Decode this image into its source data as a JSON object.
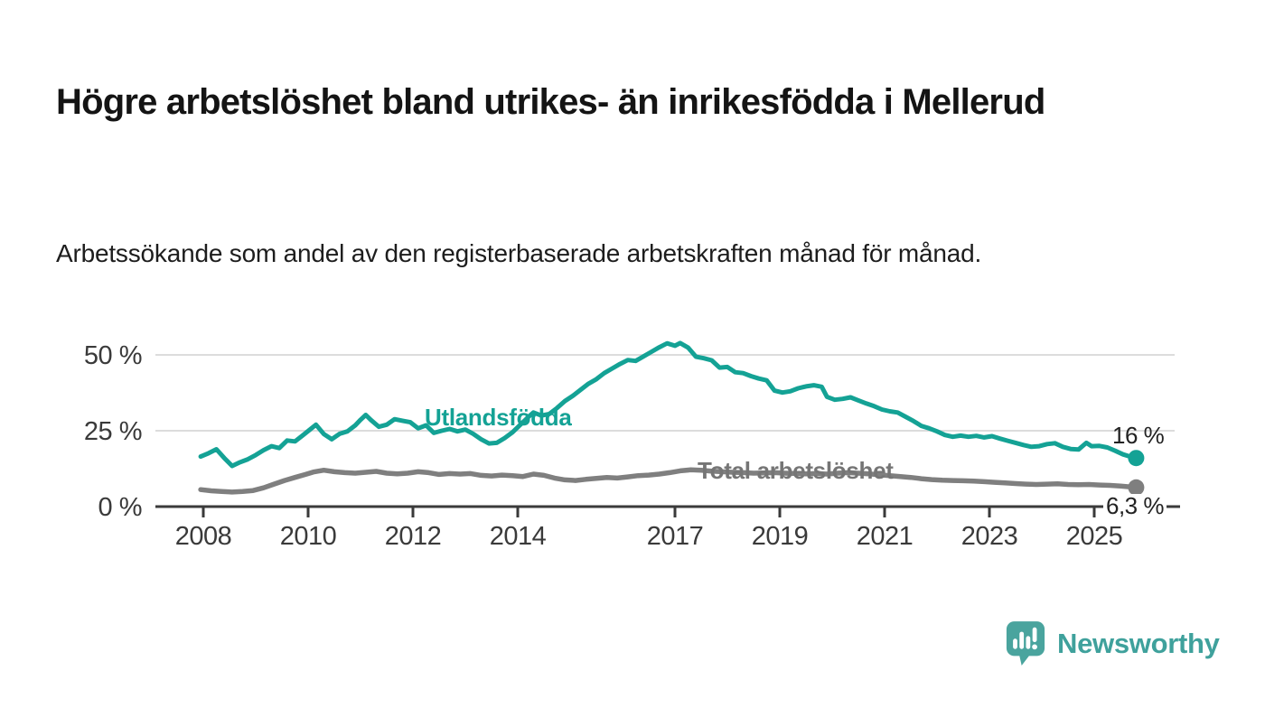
{
  "header": {
    "title": "Högre arbetslöshet bland utrikes- än inrikesfödda i Mellerud",
    "subtitle": "Arbetssökande som andel av den registerbaserade arbetskraften månad för månad."
  },
  "colors": {
    "accent_teal": "#14a295",
    "line_gray": "#7f7f7f",
    "series_label_gray": "#757575",
    "axis": "#3a3a3a",
    "gridline": "#dcdcdc",
    "end_label_text": "#222222",
    "logo_teal": "#4aa49e"
  },
  "chart_data": {
    "type": "line",
    "title": "Högre arbetslöshet bland utrikes- än inrikesfödda i Mellerud",
    "subtitle": "Arbetssökande som andel av den registerbaserade arbetskraften månad för månad.",
    "xlabel": "",
    "ylabel": "",
    "x_range": [
      2007.95,
      2025.8
    ],
    "ylim": [
      0,
      56
    ],
    "grid": "horizontal",
    "legend_position": "inline-labels",
    "y_axis": {
      "ticks": [
        {
          "value": 0,
          "label": "0 %"
        },
        {
          "value": 25,
          "label": "25 %"
        },
        {
          "value": 50,
          "label": "50 %"
        }
      ]
    },
    "x_axis": {
      "ticks": [
        {
          "year": 2008,
          "label": "2008"
        },
        {
          "year": 2010,
          "label": "2010"
        },
        {
          "year": 2012,
          "label": "2012"
        },
        {
          "year": 2014,
          "label": "2014"
        },
        {
          "year": 2017,
          "label": "2017"
        },
        {
          "year": 2019,
          "label": "2019"
        },
        {
          "year": 2021,
          "label": "2021"
        },
        {
          "year": 2023,
          "label": "2023"
        },
        {
          "year": 2025,
          "label": "2025"
        }
      ]
    },
    "series": [
      {
        "name": "Utlandsfödda",
        "label": "Utlandsfödda",
        "end_label": "16 %",
        "end_value": 16,
        "color": "#14a295",
        "points": [
          [
            2007.95,
            16.5
          ],
          [
            2008.1,
            17.6
          ],
          [
            2008.25,
            18.9
          ],
          [
            2008.4,
            16.0
          ],
          [
            2008.55,
            13.4
          ],
          [
            2008.7,
            14.6
          ],
          [
            2008.85,
            15.6
          ],
          [
            2009.0,
            17.0
          ],
          [
            2009.15,
            18.6
          ],
          [
            2009.3,
            19.9
          ],
          [
            2009.45,
            19.3
          ],
          [
            2009.6,
            21.8
          ],
          [
            2009.75,
            21.5
          ],
          [
            2009.9,
            23.5
          ],
          [
            2010.05,
            25.6
          ],
          [
            2010.15,
            27.0
          ],
          [
            2010.3,
            23.9
          ],
          [
            2010.45,
            22.2
          ],
          [
            2010.6,
            24.0
          ],
          [
            2010.75,
            24.8
          ],
          [
            2010.9,
            26.8
          ],
          [
            2011.0,
            28.6
          ],
          [
            2011.1,
            30.2
          ],
          [
            2011.2,
            28.5
          ],
          [
            2011.35,
            26.3
          ],
          [
            2011.5,
            27.0
          ],
          [
            2011.65,
            28.8
          ],
          [
            2011.8,
            28.3
          ],
          [
            2011.95,
            27.8
          ],
          [
            2012.1,
            25.8
          ],
          [
            2012.25,
            26.8
          ],
          [
            2012.4,
            24.3
          ],
          [
            2012.55,
            25.0
          ],
          [
            2012.7,
            25.6
          ],
          [
            2012.85,
            24.8
          ],
          [
            2013.0,
            25.4
          ],
          [
            2013.15,
            24.0
          ],
          [
            2013.3,
            22.2
          ],
          [
            2013.45,
            20.8
          ],
          [
            2013.6,
            21.0
          ],
          [
            2013.75,
            22.6
          ],
          [
            2013.9,
            24.5
          ],
          [
            2014.05,
            27.0
          ],
          [
            2014.2,
            29.5
          ],
          [
            2014.3,
            31.0
          ],
          [
            2014.45,
            30.0
          ],
          [
            2014.6,
            30.5
          ],
          [
            2014.75,
            32.5
          ],
          [
            2014.9,
            34.8
          ],
          [
            2015.05,
            36.5
          ],
          [
            2015.2,
            38.5
          ],
          [
            2015.35,
            40.5
          ],
          [
            2015.5,
            42.0
          ],
          [
            2015.65,
            44.0
          ],
          [
            2015.8,
            45.5
          ],
          [
            2015.95,
            47.0
          ],
          [
            2016.1,
            48.3
          ],
          [
            2016.25,
            48.0
          ],
          [
            2016.4,
            49.5
          ],
          [
            2016.55,
            51.0
          ],
          [
            2016.7,
            52.5
          ],
          [
            2016.85,
            53.8
          ],
          [
            2017.0,
            53.0
          ],
          [
            2017.1,
            53.9
          ],
          [
            2017.25,
            52.4
          ],
          [
            2017.4,
            49.4
          ],
          [
            2017.55,
            48.9
          ],
          [
            2017.7,
            48.2
          ],
          [
            2017.85,
            45.8
          ],
          [
            2018.0,
            46.0
          ],
          [
            2018.15,
            44.3
          ],
          [
            2018.3,
            44.0
          ],
          [
            2018.45,
            43.0
          ],
          [
            2018.6,
            42.2
          ],
          [
            2018.75,
            41.6
          ],
          [
            2018.9,
            38.2
          ],
          [
            2019.05,
            37.6
          ],
          [
            2019.2,
            38.0
          ],
          [
            2019.35,
            39.0
          ],
          [
            2019.5,
            39.6
          ],
          [
            2019.65,
            40.0
          ],
          [
            2019.8,
            39.5
          ],
          [
            2019.9,
            36.2
          ],
          [
            2020.05,
            35.2
          ],
          [
            2020.2,
            35.5
          ],
          [
            2020.35,
            36.0
          ],
          [
            2020.5,
            35.0
          ],
          [
            2020.65,
            34.0
          ],
          [
            2020.8,
            33.1
          ],
          [
            2020.95,
            32.0
          ],
          [
            2021.1,
            31.4
          ],
          [
            2021.25,
            31.0
          ],
          [
            2021.4,
            29.6
          ],
          [
            2021.55,
            28.2
          ],
          [
            2021.7,
            26.6
          ],
          [
            2021.85,
            25.8
          ],
          [
            2022.0,
            24.8
          ],
          [
            2022.15,
            23.6
          ],
          [
            2022.3,
            23.0
          ],
          [
            2022.45,
            23.4
          ],
          [
            2022.6,
            23.0
          ],
          [
            2022.75,
            23.3
          ],
          [
            2022.9,
            22.8
          ],
          [
            2023.05,
            23.2
          ],
          [
            2023.2,
            22.4
          ],
          [
            2023.35,
            21.7
          ],
          [
            2023.5,
            21.0
          ],
          [
            2023.65,
            20.3
          ],
          [
            2023.8,
            19.7
          ],
          [
            2023.95,
            19.9
          ],
          [
            2024.1,
            20.6
          ],
          [
            2024.25,
            20.9
          ],
          [
            2024.4,
            19.7
          ],
          [
            2024.55,
            19.0
          ],
          [
            2024.7,
            18.8
          ],
          [
            2024.85,
            21.0
          ],
          [
            2024.95,
            19.9
          ],
          [
            2025.1,
            20.0
          ],
          [
            2025.25,
            19.5
          ],
          [
            2025.4,
            18.4
          ],
          [
            2025.55,
            17.2
          ],
          [
            2025.7,
            16.4
          ],
          [
            2025.8,
            16.0
          ]
        ]
      },
      {
        "name": "Total arbetslöshet",
        "label": "Total arbetslöshet",
        "end_label": "6,3 %",
        "end_value": 6.3,
        "color": "#7f7f7f",
        "points": [
          [
            2007.95,
            5.6
          ],
          [
            2008.15,
            5.2
          ],
          [
            2008.35,
            5.0
          ],
          [
            2008.55,
            4.8
          ],
          [
            2008.75,
            5.0
          ],
          [
            2008.95,
            5.3
          ],
          [
            2009.15,
            6.2
          ],
          [
            2009.35,
            7.4
          ],
          [
            2009.55,
            8.6
          ],
          [
            2009.75,
            9.6
          ],
          [
            2009.95,
            10.6
          ],
          [
            2010.1,
            11.4
          ],
          [
            2010.3,
            12.0
          ],
          [
            2010.5,
            11.5
          ],
          [
            2010.7,
            11.2
          ],
          [
            2010.9,
            11.0
          ],
          [
            2011.1,
            11.3
          ],
          [
            2011.3,
            11.6
          ],
          [
            2011.5,
            11.0
          ],
          [
            2011.7,
            10.8
          ],
          [
            2011.9,
            11.0
          ],
          [
            2012.1,
            11.5
          ],
          [
            2012.3,
            11.2
          ],
          [
            2012.5,
            10.6
          ],
          [
            2012.7,
            10.9
          ],
          [
            2012.9,
            10.7
          ],
          [
            2013.1,
            10.9
          ],
          [
            2013.3,
            10.3
          ],
          [
            2013.5,
            10.1
          ],
          [
            2013.7,
            10.4
          ],
          [
            2013.9,
            10.2
          ],
          [
            2014.1,
            9.9
          ],
          [
            2014.3,
            10.7
          ],
          [
            2014.5,
            10.3
          ],
          [
            2014.7,
            9.4
          ],
          [
            2014.9,
            8.8
          ],
          [
            2015.1,
            8.6
          ],
          [
            2015.3,
            9.0
          ],
          [
            2015.5,
            9.3
          ],
          [
            2015.7,
            9.6
          ],
          [
            2015.9,
            9.4
          ],
          [
            2016.1,
            9.8
          ],
          [
            2016.3,
            10.2
          ],
          [
            2016.5,
            10.4
          ],
          [
            2016.7,
            10.7
          ],
          [
            2016.9,
            11.2
          ],
          [
            2017.1,
            11.8
          ],
          [
            2017.3,
            12.1
          ],
          [
            2017.5,
            12.0
          ],
          [
            2017.7,
            11.7
          ],
          [
            2017.9,
            11.5
          ],
          [
            2018.1,
            11.3
          ],
          [
            2018.3,
            11.2
          ],
          [
            2018.5,
            11.0
          ],
          [
            2018.7,
            11.1
          ],
          [
            2018.9,
            11.2
          ],
          [
            2019.1,
            11.0
          ],
          [
            2019.3,
            10.9
          ],
          [
            2019.5,
            10.8
          ],
          [
            2019.7,
            10.9
          ],
          [
            2019.9,
            10.7
          ],
          [
            2020.1,
            11.0
          ],
          [
            2020.3,
            11.2
          ],
          [
            2020.5,
            11.0
          ],
          [
            2020.7,
            10.8
          ],
          [
            2020.9,
            10.5
          ],
          [
            2021.1,
            10.2
          ],
          [
            2021.3,
            9.9
          ],
          [
            2021.5,
            9.6
          ],
          [
            2021.7,
            9.2
          ],
          [
            2021.9,
            8.9
          ],
          [
            2022.1,
            8.7
          ],
          [
            2022.3,
            8.6
          ],
          [
            2022.5,
            8.5
          ],
          [
            2022.7,
            8.4
          ],
          [
            2022.9,
            8.2
          ],
          [
            2023.1,
            8.0
          ],
          [
            2023.3,
            7.8
          ],
          [
            2023.5,
            7.6
          ],
          [
            2023.7,
            7.4
          ],
          [
            2023.9,
            7.3
          ],
          [
            2024.1,
            7.4
          ],
          [
            2024.3,
            7.5
          ],
          [
            2024.5,
            7.3
          ],
          [
            2024.7,
            7.2
          ],
          [
            2024.9,
            7.3
          ],
          [
            2025.1,
            7.1
          ],
          [
            2025.3,
            7.0
          ],
          [
            2025.5,
            6.8
          ],
          [
            2025.7,
            6.5
          ],
          [
            2025.8,
            6.3
          ]
        ]
      }
    ]
  },
  "footer": {
    "brand": "Newsworthy"
  }
}
